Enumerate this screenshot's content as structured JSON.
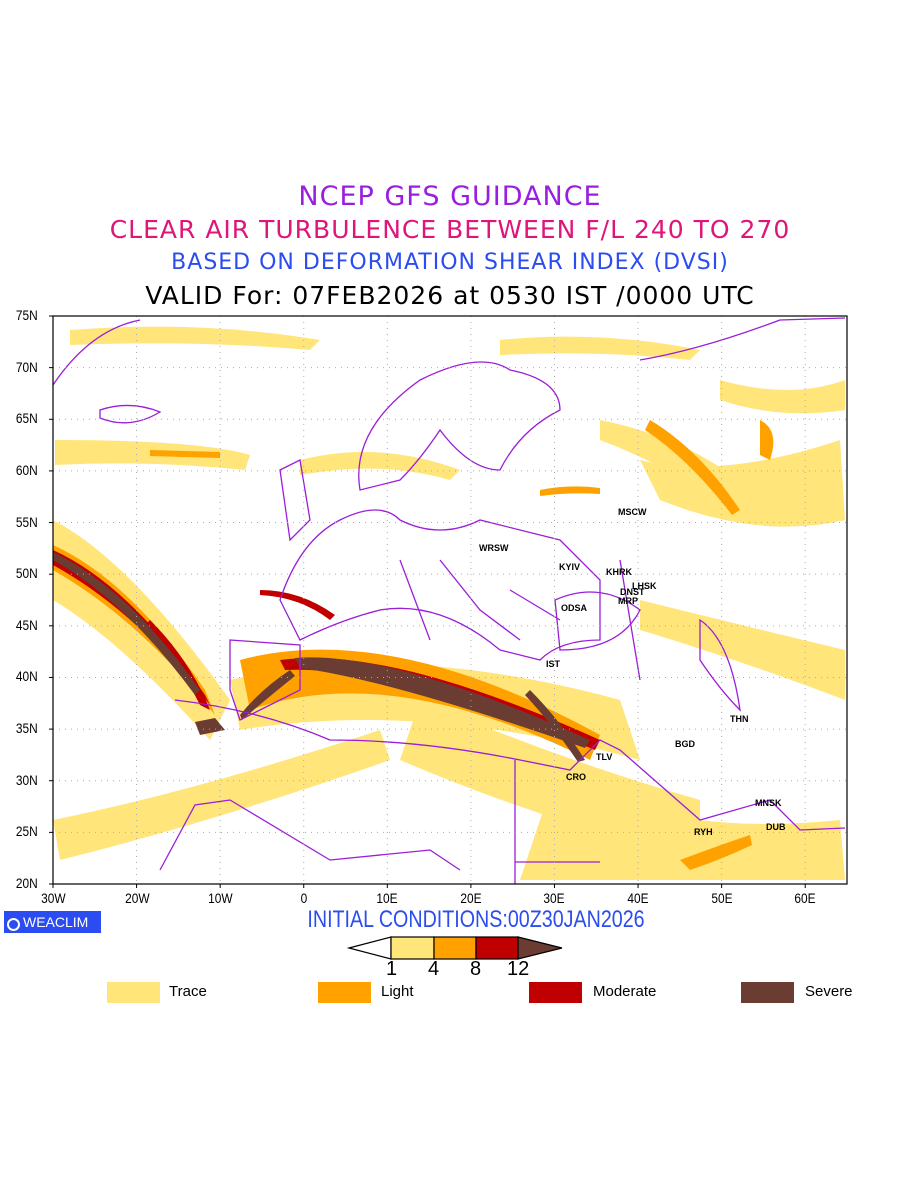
{
  "title": {
    "line1": "NCEP GFS GUIDANCE",
    "line2": "CLEAR AIR TURBULENCE BETWEEN F/L 240 TO 270",
    "line3": "BASED ON DEFORMATION SHEAR INDEX (DVSI)",
    "line4": "VALID For: 07FEB2026 at 0530 IST /0000 UTC"
  },
  "axes": {
    "lat_labels": [
      "75N",
      "70N",
      "65N",
      "60N",
      "55N",
      "50N",
      "45N",
      "40N",
      "35N",
      "30N",
      "25N",
      "20N"
    ],
    "lon_labels": [
      "30W",
      "20W",
      "10W",
      "0",
      "10E",
      "20E",
      "30E",
      "40E",
      "50E",
      "60E"
    ],
    "lon_range": [
      -30,
      65
    ],
    "lat_range": [
      20,
      75
    ]
  },
  "cities": [
    "MSCW",
    "WRSW",
    "KYIV",
    "KHRK",
    "LHSK",
    "DNST",
    "MRP",
    "ODSA",
    "IST",
    "THN",
    "BGD",
    "TLV",
    "CRO",
    "MNSK",
    "DUB",
    "RYH"
  ],
  "brand": "WEACLIM",
  "initial_conditions": "INITIAL CONDITIONS:00Z30JAN2026",
  "colorbar": {
    "ticks": [
      "1",
      "4",
      "8",
      "12"
    ]
  },
  "legend": [
    {
      "label": "Trace",
      "color": "#ffe57a"
    },
    {
      "label": "Light",
      "color": "#ffa200"
    },
    {
      "label": "Moderate",
      "color": "#c00000"
    },
    {
      "label": "Severe",
      "color": "#6b3d32"
    }
  ]
}
